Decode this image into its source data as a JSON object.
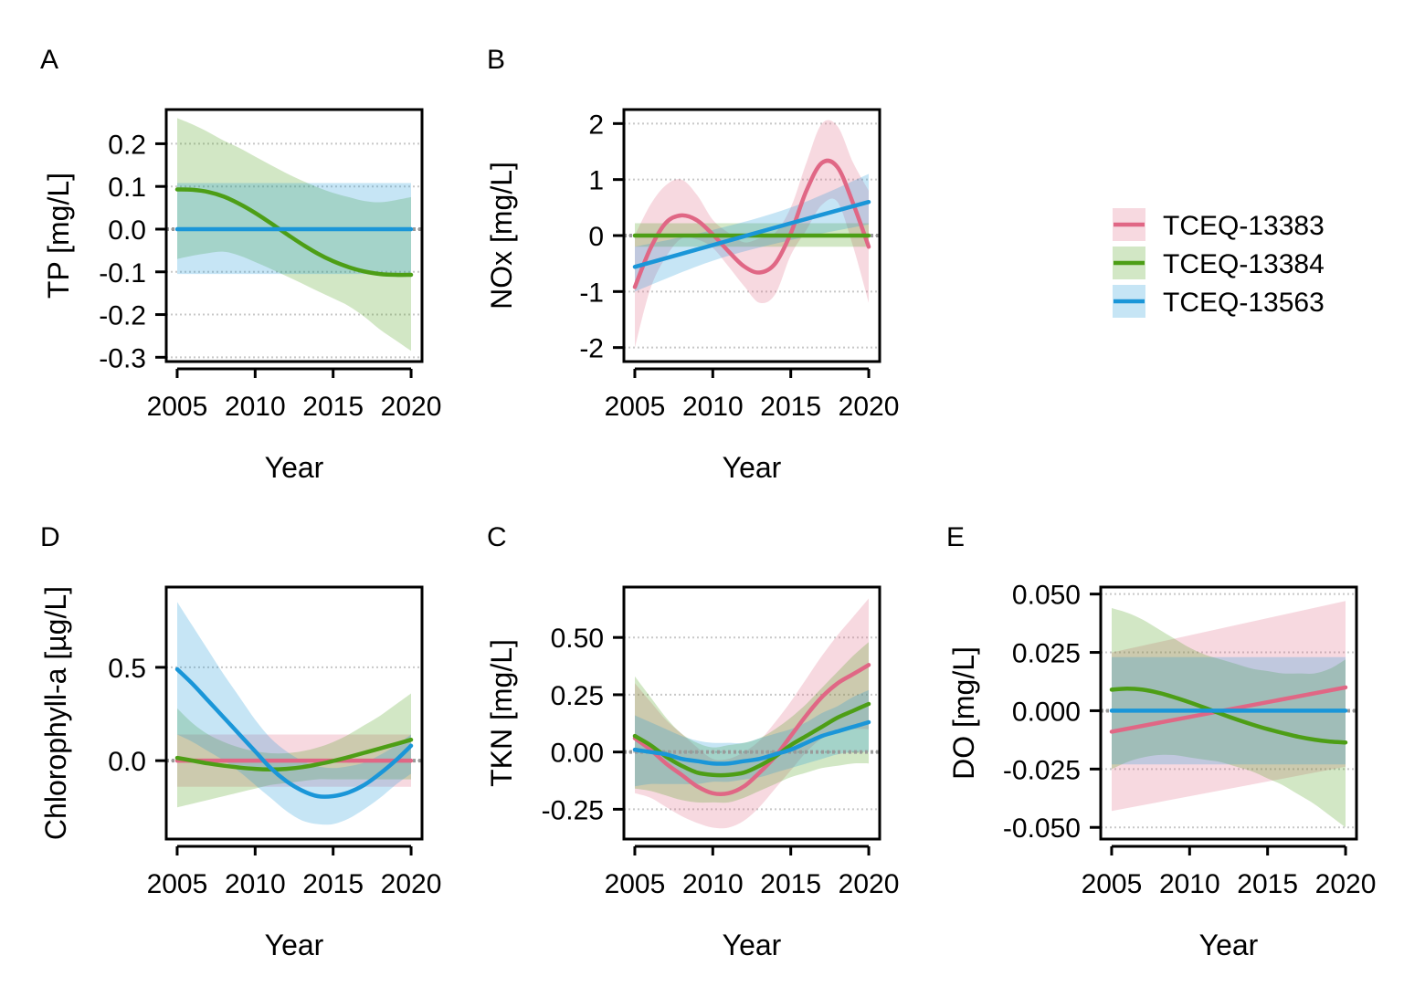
{
  "colors": {
    "TCEQ-13383": "#e06785",
    "TCEQ-13384": "#4d9e16",
    "TCEQ-13563": "#1a96d8"
  },
  "legend": {
    "position": "right",
    "items": [
      "TCEQ-13383",
      "TCEQ-13384",
      "TCEQ-13563"
    ]
  },
  "chart_data": [
    {
      "id": "A",
      "panel_label": "A",
      "type": "line",
      "xlabel": "Year",
      "ylabel": "TP [mg/L]",
      "xlim": [
        2004.3,
        2020.7
      ],
      "ylim": [
        -0.31,
        0.28
      ],
      "xticks": [
        2005,
        2010,
        2015,
        2020
      ],
      "xtick_labels": [
        "2005",
        "2010",
        "2015",
        "2020"
      ],
      "yticks": [
        -0.3,
        -0.2,
        -0.1,
        0.0,
        0.1,
        0.2
      ],
      "ytick_labels": [
        "-0.3",
        "-0.2",
        "-0.1",
        "0.0",
        "0.1",
        "0.2"
      ],
      "grid": "horizontal dotted",
      "zero_line": true,
      "series": [
        {
          "name": "TCEQ-13384",
          "x": [
            2005,
            2006,
            2007,
            2008,
            2009,
            2010,
            2011,
            2012,
            2013,
            2014,
            2015,
            2016,
            2017,
            2018,
            2019,
            2020
          ],
          "y": [
            0.093,
            0.092,
            0.087,
            0.076,
            0.059,
            0.038,
            0.014,
            -0.011,
            -0.035,
            -0.057,
            -0.075,
            -0.089,
            -0.099,
            -0.105,
            -0.107,
            -0.107
          ],
          "lower": [
            -0.07,
            -0.062,
            -0.056,
            -0.053,
            -0.062,
            -0.077,
            -0.093,
            -0.11,
            -0.127,
            -0.145,
            -0.162,
            -0.18,
            -0.205,
            -0.235,
            -0.26,
            -0.285
          ],
          "upper": [
            0.26,
            0.245,
            0.227,
            0.207,
            0.19,
            0.17,
            0.15,
            0.131,
            0.114,
            0.098,
            0.085,
            0.075,
            0.066,
            0.063,
            0.068,
            0.075
          ]
        },
        {
          "name": "TCEQ-13563",
          "x": [
            2005,
            2010,
            2015,
            2020
          ],
          "y": [
            0,
            0,
            0,
            0
          ],
          "lower": [
            -0.105,
            -0.105,
            -0.105,
            -0.105
          ],
          "upper": [
            0.108,
            0.108,
            0.108,
            0.108
          ]
        }
      ]
    },
    {
      "id": "B",
      "panel_label": "B",
      "type": "line",
      "xlabel": "Year",
      "ylabel": "NOx [mg/L]",
      "xlim": [
        2004.3,
        2020.7
      ],
      "ylim": [
        -2.25,
        2.25
      ],
      "xticks": [
        2005,
        2010,
        2015,
        2020
      ],
      "xtick_labels": [
        "2005",
        "2010",
        "2015",
        "2020"
      ],
      "yticks": [
        -2,
        -1,
        0,
        1,
        2
      ],
      "ytick_labels": [
        "-2",
        "-1",
        "0",
        "1",
        "2"
      ],
      "grid": "horizontal dotted",
      "zero_line": true,
      "series": [
        {
          "name": "TCEQ-13383",
          "x": [
            2005,
            2006,
            2007,
            2008,
            2009,
            2010,
            2011,
            2012,
            2013,
            2014,
            2015,
            2016,
            2017,
            2018,
            2019,
            2020
          ],
          "y": [
            -0.92,
            -0.23,
            0.23,
            0.36,
            0.27,
            0.02,
            -0.28,
            -0.55,
            -0.66,
            -0.5,
            0.04,
            0.8,
            1.3,
            1.22,
            0.57,
            -0.2
          ],
          "lower": [
            -2.0,
            -0.95,
            -0.38,
            -0.05,
            -0.07,
            -0.22,
            -0.55,
            -0.9,
            -1.2,
            -1.05,
            -0.35,
            0.1,
            0.55,
            0.6,
            -0.2,
            -1.2
          ],
          "upper": [
            0.0,
            0.55,
            0.9,
            1.0,
            0.72,
            0.28,
            0.05,
            -0.12,
            -0.05,
            0.05,
            0.5,
            1.3,
            2.0,
            1.95,
            1.3,
            0.8
          ]
        },
        {
          "name": "TCEQ-13384",
          "x": [
            2005,
            2010,
            2015,
            2020
          ],
          "y": [
            0,
            0,
            0,
            0
          ],
          "lower": [
            -0.2,
            -0.2,
            -0.2,
            -0.2
          ],
          "upper": [
            0.22,
            0.22,
            0.22,
            0.22
          ]
        },
        {
          "name": "TCEQ-13563",
          "x": [
            2005,
            2010,
            2015,
            2020
          ],
          "y": [
            -0.56,
            -0.17,
            0.22,
            0.6
          ],
          "lower": [
            -1.0,
            -0.45,
            -0.08,
            0.2
          ],
          "upper": [
            -0.2,
            0.1,
            0.5,
            1.1
          ]
        }
      ]
    },
    {
      "id": "D",
      "panel_label": "D",
      "type": "line",
      "xlabel": "Year",
      "ylabel": "Chlorophyll-a [µg/L]",
      "xlim": [
        2004.3,
        2020.7
      ],
      "ylim": [
        -0.42,
        0.93
      ],
      "xticks": [
        2005,
        2010,
        2015,
        2020
      ],
      "xtick_labels": [
        "2005",
        "2010",
        "2015",
        "2020"
      ],
      "yticks": [
        0.0,
        0.5
      ],
      "ytick_labels": [
        "0.0",
        "0.5"
      ],
      "grid": "horizontal dotted",
      "zero_line": true,
      "series": [
        {
          "name": "TCEQ-13383",
          "x": [
            2005,
            2010,
            2015,
            2020
          ],
          "y": [
            0,
            0,
            0,
            0
          ],
          "lower": [
            -0.14,
            -0.14,
            -0.14,
            -0.14
          ],
          "upper": [
            0.14,
            0.14,
            0.14,
            0.14
          ]
        },
        {
          "name": "TCEQ-13384",
          "x": [
            2005,
            2006,
            2007,
            2008,
            2009,
            2010,
            2011,
            2012,
            2013,
            2014,
            2015,
            2016,
            2017,
            2018,
            2019,
            2020
          ],
          "y": [
            0.015,
            0.0,
            -0.015,
            -0.027,
            -0.037,
            -0.044,
            -0.047,
            -0.044,
            -0.035,
            -0.02,
            -0.002,
            0.019,
            0.042,
            0.065,
            0.088,
            0.112
          ],
          "lower": [
            -0.25,
            -0.23,
            -0.21,
            -0.19,
            -0.17,
            -0.15,
            -0.13,
            -0.12,
            -0.11,
            -0.1,
            -0.1,
            -0.1,
            -0.1,
            -0.1,
            -0.1,
            -0.1
          ],
          "upper": [
            0.28,
            0.2,
            0.14,
            0.1,
            0.07,
            0.05,
            0.04,
            0.04,
            0.05,
            0.07,
            0.1,
            0.14,
            0.19,
            0.24,
            0.3,
            0.36
          ]
        },
        {
          "name": "TCEQ-13563",
          "x": [
            2005,
            2006,
            2007,
            2008,
            2009,
            2010,
            2011,
            2012,
            2013,
            2014,
            2015,
            2016,
            2017,
            2018,
            2019,
            2020
          ],
          "y": [
            0.49,
            0.41,
            0.32,
            0.23,
            0.14,
            0.05,
            -0.04,
            -0.11,
            -0.16,
            -0.19,
            -0.19,
            -0.17,
            -0.13,
            -0.07,
            0.0,
            0.08
          ],
          "lower": [
            0.14,
            0.1,
            0.05,
            0.0,
            -0.06,
            -0.13,
            -0.2,
            -0.27,
            -0.32,
            -0.34,
            -0.34,
            -0.31,
            -0.26,
            -0.2,
            -0.13,
            -0.07
          ],
          "upper": [
            0.85,
            0.72,
            0.59,
            0.46,
            0.34,
            0.22,
            0.12,
            0.05,
            0.0,
            -0.03,
            -0.04,
            -0.03,
            -0.01,
            0.03,
            0.08,
            0.14
          ]
        }
      ]
    },
    {
      "id": "C",
      "panel_label": "C",
      "type": "line",
      "xlabel": "Year",
      "ylabel": "TKN [mg/L]",
      "xlim": [
        2004.3,
        2020.7
      ],
      "ylim": [
        -0.38,
        0.72
      ],
      "xticks": [
        2005,
        2010,
        2015,
        2020
      ],
      "xtick_labels": [
        "2005",
        "2010",
        "2015",
        "2020"
      ],
      "yticks": [
        -0.25,
        0.0,
        0.25,
        0.5
      ],
      "ytick_labels": [
        "-0.25",
        "0.00",
        "0.25",
        "0.50"
      ],
      "grid": "horizontal dotted",
      "zero_line": true,
      "series": [
        {
          "name": "TCEQ-13383",
          "x": [
            2005,
            2006,
            2007,
            2008,
            2009,
            2010,
            2011,
            2012,
            2013,
            2014,
            2015,
            2016,
            2017,
            2018,
            2019,
            2020
          ],
          "y": [
            0.06,
            0.01,
            -0.05,
            -0.1,
            -0.15,
            -0.18,
            -0.18,
            -0.15,
            -0.09,
            -0.02,
            0.07,
            0.16,
            0.24,
            0.3,
            0.34,
            0.38
          ],
          "lower": [
            -0.18,
            -0.2,
            -0.24,
            -0.28,
            -0.31,
            -0.33,
            -0.33,
            -0.3,
            -0.24,
            -0.16,
            -0.08,
            0.0,
            0.06,
            0.09,
            0.1,
            0.1
          ],
          "upper": [
            0.3,
            0.22,
            0.14,
            0.08,
            0.02,
            -0.03,
            -0.03,
            0.0,
            0.05,
            0.13,
            0.22,
            0.32,
            0.42,
            0.51,
            0.59,
            0.67
          ]
        },
        {
          "name": "TCEQ-13384",
          "x": [
            2005,
            2006,
            2007,
            2008,
            2009,
            2010,
            2011,
            2012,
            2013,
            2014,
            2015,
            2016,
            2017,
            2018,
            2019,
            2020
          ],
          "y": [
            0.07,
            0.03,
            -0.02,
            -0.06,
            -0.09,
            -0.1,
            -0.1,
            -0.09,
            -0.06,
            -0.02,
            0.03,
            0.07,
            0.11,
            0.15,
            0.18,
            0.21
          ],
          "lower": [
            -0.16,
            -0.17,
            -0.19,
            -0.21,
            -0.22,
            -0.22,
            -0.22,
            -0.2,
            -0.17,
            -0.14,
            -0.11,
            -0.09,
            -0.07,
            -0.06,
            -0.05,
            -0.05
          ],
          "upper": [
            0.33,
            0.24,
            0.15,
            0.08,
            0.04,
            0.02,
            0.03,
            0.04,
            0.06,
            0.1,
            0.15,
            0.21,
            0.28,
            0.35,
            0.42,
            0.48
          ]
        },
        {
          "name": "TCEQ-13563",
          "x": [
            2005,
            2006,
            2007,
            2008,
            2009,
            2010,
            2011,
            2012,
            2013,
            2014,
            2015,
            2016,
            2017,
            2018,
            2019,
            2020
          ],
          "y": [
            0.01,
            0.0,
            -0.01,
            -0.03,
            -0.04,
            -0.05,
            -0.05,
            -0.04,
            -0.03,
            -0.01,
            0.01,
            0.04,
            0.07,
            0.09,
            0.11,
            0.13
          ],
          "lower": [
            -0.15,
            -0.14,
            -0.14,
            -0.14,
            -0.14,
            -0.13,
            -0.13,
            -0.12,
            -0.11,
            -0.09,
            -0.07,
            -0.05,
            -0.03,
            -0.01,
            0.0,
            0.0
          ],
          "upper": [
            0.16,
            0.13,
            0.1,
            0.07,
            0.05,
            0.04,
            0.04,
            0.04,
            0.06,
            0.08,
            0.1,
            0.13,
            0.17,
            0.2,
            0.24,
            0.27
          ]
        }
      ]
    },
    {
      "id": "E",
      "panel_label": "E",
      "type": "line",
      "xlabel": "Year",
      "ylabel": "DO [mg/L]",
      "xlim": [
        2004.3,
        2020.7
      ],
      "ylim": [
        -0.055,
        0.053
      ],
      "xticks": [
        2005,
        2010,
        2015,
        2020
      ],
      "xtick_labels": [
        "2005",
        "2010",
        "2015",
        "2020"
      ],
      "yticks": [
        -0.05,
        -0.025,
        0.0,
        0.025,
        0.05
      ],
      "ytick_labels": [
        "-0.050",
        "-0.025",
        "0.000",
        "0.025",
        "0.050"
      ],
      "grid": "horizontal dotted",
      "zero_line": true,
      "series": [
        {
          "name": "TCEQ-13383",
          "x": [
            2005,
            2020
          ],
          "y": [
            -0.009,
            0.01
          ],
          "lower": [
            -0.043,
            -0.024
          ],
          "upper": [
            0.025,
            0.047
          ]
        },
        {
          "name": "TCEQ-13384",
          "x": [
            2005,
            2006,
            2007,
            2008,
            2009,
            2010,
            2011,
            2012,
            2013,
            2014,
            2015,
            2016,
            2017,
            2018,
            2019,
            2020
          ],
          "y": [
            0.009,
            0.0095,
            0.009,
            0.0077,
            0.0058,
            0.0036,
            0.0012,
            -0.0013,
            -0.0037,
            -0.0059,
            -0.0079,
            -0.0096,
            -0.0112,
            -0.0124,
            -0.0132,
            -0.0136
          ],
          "lower": [
            -0.025,
            -0.022,
            -0.02,
            -0.019,
            -0.019,
            -0.02,
            -0.021,
            -0.022,
            -0.024,
            -0.026,
            -0.029,
            -0.032,
            -0.036,
            -0.04,
            -0.045,
            -0.05
          ],
          "upper": [
            0.044,
            0.042,
            0.039,
            0.035,
            0.031,
            0.027,
            0.024,
            0.022,
            0.02,
            0.018,
            0.017,
            0.016,
            0.016,
            0.016,
            0.018,
            0.022
          ]
        },
        {
          "name": "TCEQ-13563",
          "x": [
            2005,
            2010,
            2015,
            2020
          ],
          "y": [
            0,
            0,
            0,
            0
          ],
          "lower": [
            -0.023,
            -0.023,
            -0.023,
            -0.023
          ],
          "upper": [
            0.023,
            0.023,
            0.023,
            0.023
          ]
        }
      ]
    }
  ]
}
